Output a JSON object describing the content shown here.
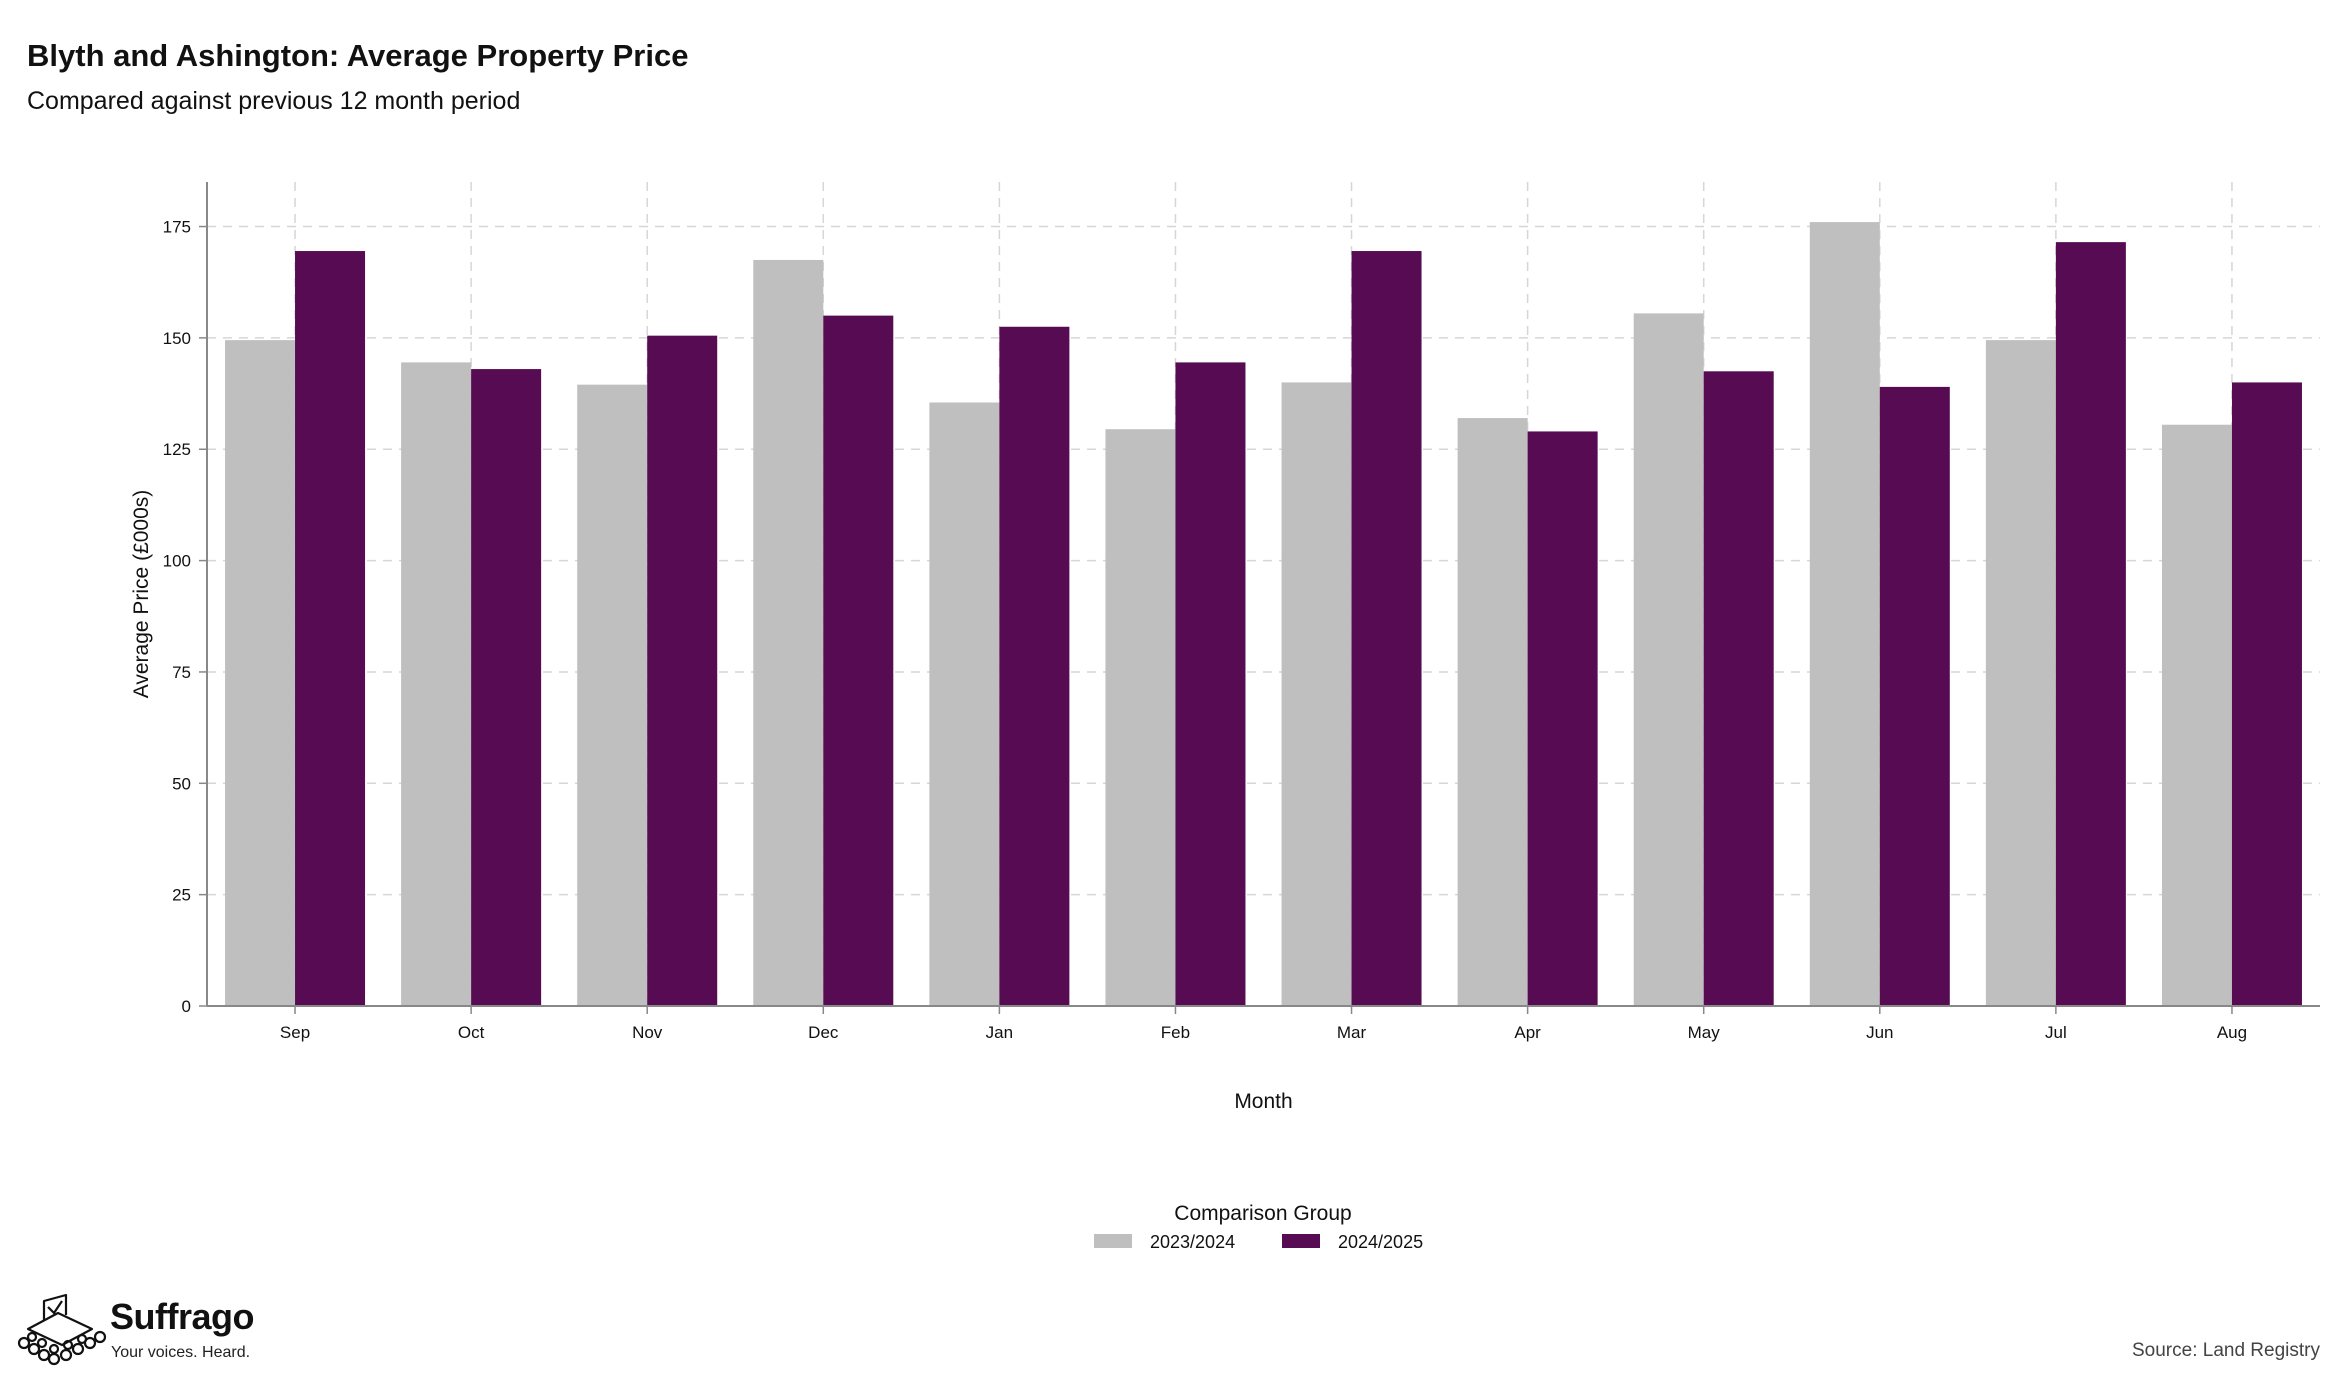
{
  "chart_data": {
    "type": "bar",
    "title": "Blyth and Ashington: Average Property Price",
    "subtitle": "Compared against previous 12 month period",
    "xlabel": "Month",
    "ylabel": "Average Price (£000s)",
    "ylim": [
      0,
      185
    ],
    "yticks": [
      0,
      25,
      50,
      75,
      100,
      125,
      150,
      175
    ],
    "grid": true,
    "legend_placement": "bottom-center",
    "legend_title": "Comparison Group",
    "categories": [
      "Sep",
      "Oct",
      "Nov",
      "Dec",
      "Jan",
      "Feb",
      "Mar",
      "Apr",
      "May",
      "Jun",
      "Jul",
      "Aug"
    ],
    "series": [
      {
        "name": "2023/2024",
        "color": "#bfbfbf",
        "values": [
          149.5,
          144.5,
          139.5,
          167.5,
          135.5,
          129.5,
          140,
          132,
          155.5,
          176,
          149.5,
          130.5
        ]
      },
      {
        "name": "2024/2025",
        "color": "#560b52",
        "values": [
          169.5,
          143,
          150.5,
          155,
          152.5,
          144.5,
          169.5,
          129,
          142.5,
          139,
          171.5,
          140
        ]
      }
    ]
  },
  "branding": {
    "name": "Suffrago",
    "tagline": "Your voices. Heard.",
    "logo_icon": "ballot-box-crowd-icon"
  },
  "source": "Source: Land Registry"
}
